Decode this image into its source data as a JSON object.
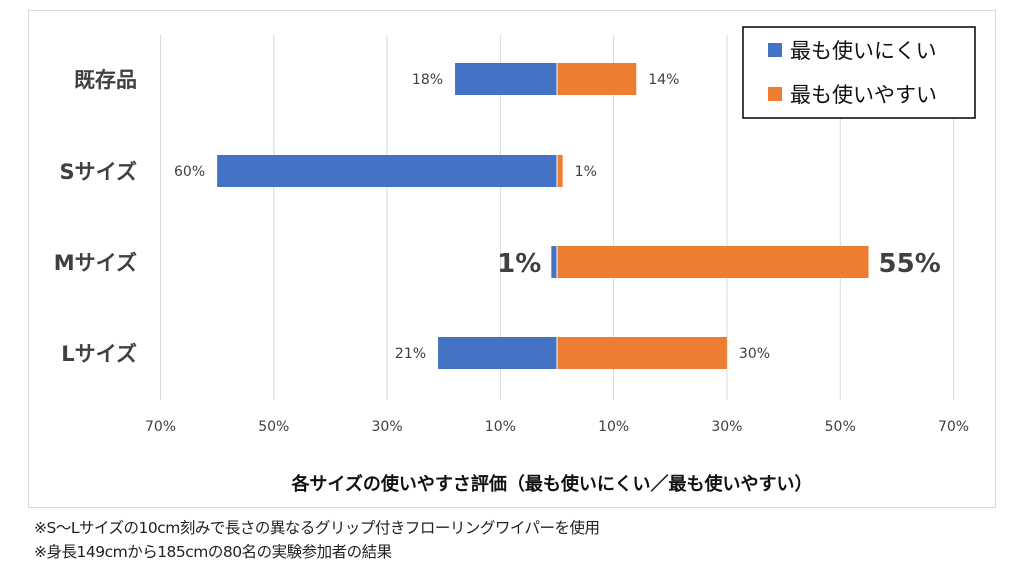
{
  "chart_data": {
    "type": "bar",
    "orientation": "horizontal-diverging",
    "categories": [
      "既存品",
      "Sサイズ",
      "Mサイズ",
      "Lサイズ"
    ],
    "series": [
      {
        "name": "最も使いにくい",
        "values": [
          18,
          60,
          1,
          21
        ],
        "color": "#4472c4",
        "side": "left"
      },
      {
        "name": "最も使いやすい",
        "values": [
          14,
          1,
          55,
          30
        ],
        "color": "#ed7d31",
        "side": "right"
      }
    ],
    "data_labels": [
      [
        "18%",
        "60%",
        "1%",
        "21%"
      ],
      [
        "14%",
        "1%",
        "55%",
        "30%"
      ]
    ],
    "highlight_category": "Mサイズ",
    "xlim": [
      -70,
      70
    ],
    "ticks": [
      -70,
      -50,
      -30,
      -10,
      10,
      30,
      50,
      70
    ],
    "tick_labels": [
      "70%",
      "50%",
      "30%",
      "10%",
      "10%",
      "30%",
      "50%",
      "70%"
    ],
    "xlabel": "各サイズの使いやすさ評価（最も使いにくい／最も使いやすい）",
    "grid": true,
    "legend": "top-right"
  },
  "notes": [
    "※S〜Lサイズの10cm刻みで長さの異なるグリップ付きフローリングワイパーを使用",
    "※身長149cmから185cmの80名の実験参加者の結果"
  ]
}
